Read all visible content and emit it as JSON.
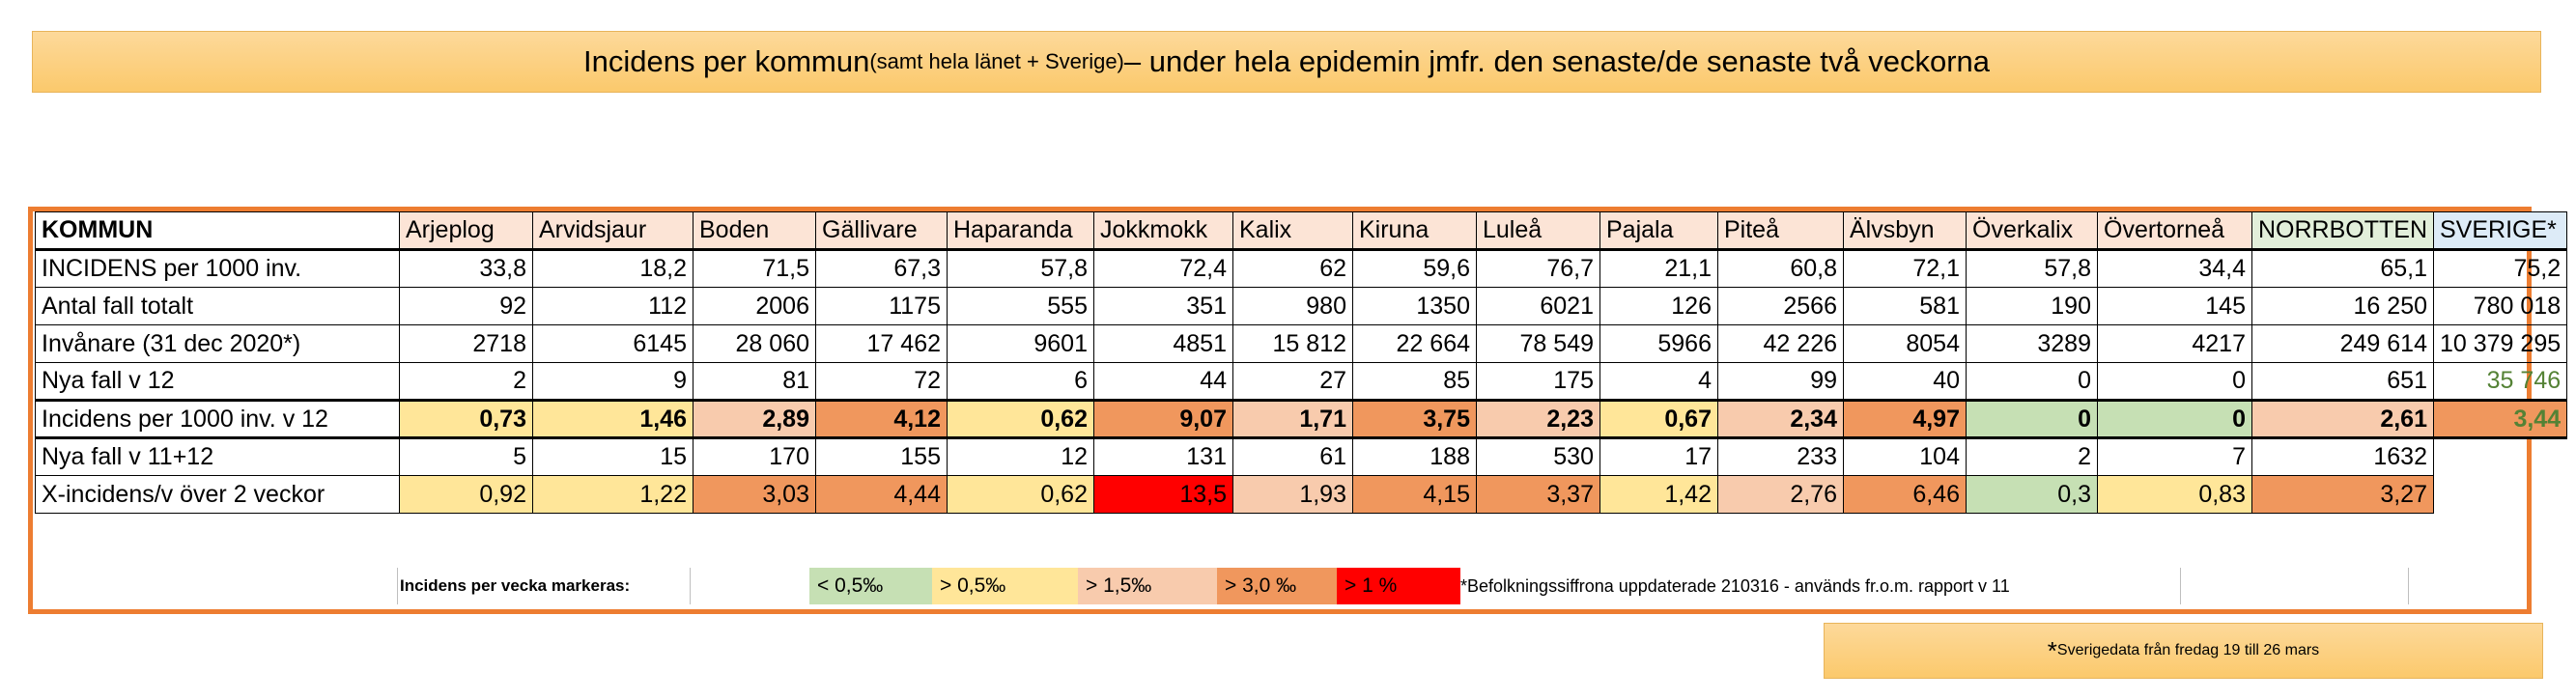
{
  "title": {
    "main_part1": "Incidens per kommun ",
    "small_part": "(samt hela länet + Sverige)",
    "main_part2": " – under hela epidemin jmfr. den senaste/de senaste två veckorna"
  },
  "table": {
    "corner": "KOMMUN",
    "columns": [
      "Arjeplog",
      "Arvidsjaur",
      "Boden",
      "Gällivare",
      "Haparanda",
      "Jokkmokk",
      "Kalix",
      "Kiruna",
      "Luleå",
      "Pajala",
      "Piteå",
      "Älvsbyn",
      "Överkalix",
      "Övertorneå",
      "NORRBOTTEN",
      "SVERIGE*"
    ],
    "rows": [
      {
        "label": "INCIDENS per 1000 inv.",
        "values": [
          "33,8",
          "18,2",
          "71,5",
          "67,3",
          "57,8",
          "72,4",
          "62",
          "59,6",
          "76,7",
          "21,1",
          "60,8",
          "72,1",
          "57,8",
          "34,4",
          "65,1",
          "75,2"
        ]
      },
      {
        "label": "Antal fall totalt",
        "values": [
          "92",
          "112",
          "2006",
          "1175",
          "555",
          "351",
          "980",
          "1350",
          "6021",
          "126",
          "2566",
          "581",
          "190",
          "145",
          "16 250",
          "780 018"
        ]
      },
      {
        "label": "Invånare (31 dec 2020*)",
        "values": [
          "2718",
          "6145",
          "28 060",
          "17 462",
          "9601",
          "4851",
          "15 812",
          "22 664",
          "78 549",
          "5966",
          "42 226",
          "8054",
          "3289",
          "4217",
          "249 614",
          "10 379 295"
        ]
      },
      {
        "label": "Nya fall v 12",
        "values": [
          "2",
          "9",
          "81",
          "72",
          "6",
          "44",
          "27",
          "85",
          "175",
          "4",
          "99",
          "40",
          "0",
          "0",
          "651",
          "35 746"
        ]
      },
      {
        "label": "Incidens per 1000 inv. v 12",
        "values": [
          "0,73",
          "1,46",
          "2,89",
          "4,12",
          "0,62",
          "9,07",
          "1,71",
          "3,75",
          "2,23",
          "0,67",
          "2,34",
          "4,97",
          "0",
          "0",
          "2,61",
          "3,44"
        ]
      },
      {
        "label": "Nya fall v 11+12",
        "values": [
          "5",
          "15",
          "170",
          "155",
          "12",
          "131",
          "61",
          "188",
          "530",
          "17",
          "233",
          "104",
          "2",
          "7",
          "1632",
          ""
        ]
      },
      {
        "label": "X-incidens/v över 2 veckor",
        "values": [
          "0,92",
          "1,22",
          "3,03",
          "4,44",
          "0,62",
          "13,5",
          "1,93",
          "4,15",
          "3,37",
          "1,42",
          "2,76",
          "6,46",
          "0,3",
          "0,83",
          "3,27",
          ""
        ]
      }
    ]
  },
  "legend": {
    "label": "Incidens per vecka markeras:",
    "items": [
      "< 0,5‰",
      "> 0,5‰",
      "> 1,5‰",
      "> 3,0 ‰",
      "> 1 %"
    ],
    "note": "*Befolkningssiffrona uppdaterade 210316 - används fr.o.m. rapport v 11"
  },
  "footnote": {
    "star": "*",
    "text": "Sverigedata från fredag 19 till 26 mars"
  },
  "colors": {
    "green": "#c6e0b4",
    "yellow": "#ffe699",
    "light_orange": "#f8cbad",
    "orange": "#f4b084",
    "red": "#ff0000",
    "frame": "#ed7d31"
  }
}
